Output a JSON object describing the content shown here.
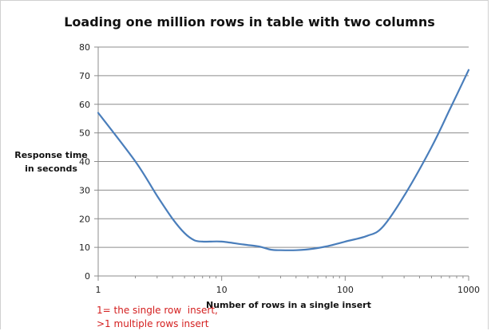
{
  "chart_data": {
    "type": "line",
    "title": "Loading one million rows in table with two columns",
    "xlabel": "Number of rows in a single insert",
    "ylabel_line1": "Response time",
    "ylabel_line2": "in seconds",
    "x_scale": "log",
    "xlim": [
      1,
      1000
    ],
    "ylim": [
      0,
      80
    ],
    "x_ticks": [
      1,
      10,
      100,
      1000
    ],
    "y_ticks": [
      0,
      10,
      20,
      30,
      40,
      50,
      60,
      70,
      80
    ],
    "grid": "horizontal",
    "line_color": "#4a7ebb",
    "series": [
      {
        "x": [
          1,
          2,
          3,
          4,
          5,
          6,
          7,
          8,
          10,
          15,
          20,
          25,
          30,
          40,
          50,
          70,
          100,
          150,
          200,
          300,
          500,
          700,
          1000
        ],
        "values": [
          57,
          40,
          28,
          20,
          15,
          12.5,
          12,
          12,
          12,
          11,
          10.3,
          9.2,
          9,
          9,
          9.3,
          10.3,
          12,
          14,
          17,
          28,
          45,
          58,
          72
        ]
      }
    ],
    "note_line1": "1= the single row  insert,",
    "note_line2": ">1 multiple rows insert"
  }
}
